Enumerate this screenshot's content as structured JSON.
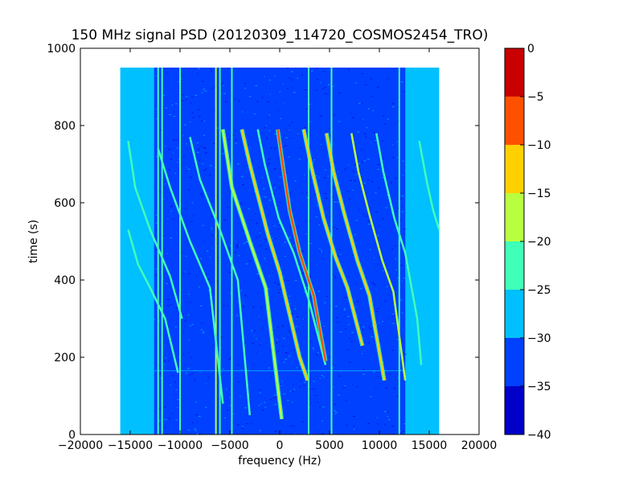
{
  "chart_data": {
    "type": "heatmap",
    "title": "150 MHz signal PSD (20120309_114720_COSMOS2454_TRO)",
    "xlabel": "frequency (Hz)",
    "ylabel": "time (s)",
    "xlim": [
      -20000,
      20000
    ],
    "ylim": [
      0,
      1000
    ],
    "xticks": [
      -20000,
      -15000,
      -10000,
      -5000,
      0,
      5000,
      10000,
      15000,
      20000
    ],
    "yticks": [
      0,
      200,
      400,
      600,
      800,
      1000
    ],
    "data_extent": {
      "x": [
        -16000,
        16000
      ],
      "y": [
        0,
        950
      ]
    },
    "colorbar": {
      "range": [
        -40,
        0
      ],
      "ticks": [
        0,
        -5,
        -10,
        -15,
        -20,
        -25,
        -30,
        -35,
        -40
      ],
      "levels": [
        {
          "min": -40,
          "max": -35,
          "color": "#0000c8"
        },
        {
          "min": -35,
          "max": -30,
          "color": "#0040ff"
        },
        {
          "min": -30,
          "max": -25,
          "color": "#00c0ff"
        },
        {
          "min": -25,
          "max": -20,
          "color": "#40ffb8"
        },
        {
          "min": -20,
          "max": -15,
          "color": "#b8ff40"
        },
        {
          "min": -15,
          "max": -10,
          "color": "#ffd000"
        },
        {
          "min": -10,
          "max": -5,
          "color": "#ff5000"
        },
        {
          "min": -5,
          "max": 0,
          "color": "#c80000"
        }
      ]
    },
    "colors": {
      "background": "#00c0ff",
      "noise_floor": "#0040ff",
      "deep_floor": "#0000c8"
    },
    "doppler_curves": [
      {
        "name": "c1",
        "points": [
          [
            -15200,
            760
          ],
          [
            -14500,
            640
          ],
          [
            -13000,
            530
          ],
          [
            -11000,
            410
          ],
          [
            -9800,
            300
          ]
        ],
        "level": -22
      },
      {
        "name": "c2",
        "points": [
          [
            -15200,
            530
          ],
          [
            -14200,
            440
          ],
          [
            -13000,
            380
          ],
          [
            -11500,
            300
          ],
          [
            -10200,
            160
          ]
        ],
        "level": -22
      },
      {
        "name": "c3",
        "points": [
          [
            -12200,
            740
          ],
          [
            -11000,
            640
          ],
          [
            -9000,
            500
          ],
          [
            -7000,
            380
          ],
          [
            -5700,
            80
          ]
        ],
        "level": -22
      },
      {
        "name": "c4",
        "points": [
          [
            -9000,
            770
          ],
          [
            -8000,
            660
          ],
          [
            -6000,
            530
          ],
          [
            -4200,
            400
          ],
          [
            -3000,
            50
          ]
        ],
        "level": -22
      },
      {
        "name": "c5",
        "points": [
          [
            -5700,
            790
          ],
          [
            -4800,
            640
          ],
          [
            -3000,
            500
          ],
          [
            -1400,
            380
          ],
          [
            200,
            40
          ]
        ],
        "level": -18
      },
      {
        "name": "c6",
        "points": [
          [
            -3800,
            790
          ],
          [
            -3000,
            700
          ],
          [
            -1200,
            520
          ],
          [
            0,
            420
          ],
          [
            2000,
            200
          ],
          [
            2800,
            140
          ]
        ],
        "level": -12
      },
      {
        "name": "c7",
        "points": [
          [
            -2200,
            790
          ],
          [
            -1500,
            700
          ],
          [
            -100,
            560
          ],
          [
            1400,
            470
          ],
          [
            2900,
            350
          ],
          [
            4600,
            180
          ]
        ],
        "level": -22
      },
      {
        "name": "c8",
        "points": [
          [
            -200,
            790
          ],
          [
            300,
            700
          ],
          [
            1000,
            580
          ],
          [
            2000,
            470
          ],
          [
            3400,
            360
          ],
          [
            4600,
            190
          ]
        ],
        "level": -7
      },
      {
        "name": "c9",
        "points": [
          [
            2400,
            790
          ],
          [
            3200,
            690
          ],
          [
            4400,
            560
          ],
          [
            5600,
            460
          ],
          [
            6800,
            380
          ],
          [
            8300,
            230
          ]
        ],
        "level": -12
      },
      {
        "name": "c10",
        "points": [
          [
            4700,
            780
          ],
          [
            5400,
            680
          ],
          [
            6500,
            570
          ],
          [
            7800,
            450
          ],
          [
            9000,
            360
          ],
          [
            10500,
            140
          ]
        ],
        "level": -14
      },
      {
        "name": "c11",
        "points": [
          [
            7200,
            780
          ],
          [
            7900,
            680
          ],
          [
            9000,
            570
          ],
          [
            10300,
            450
          ],
          [
            11400,
            370
          ],
          [
            12600,
            140
          ]
        ],
        "level": -20
      },
      {
        "name": "c12",
        "points": [
          [
            9700,
            780
          ],
          [
            10400,
            680
          ],
          [
            11500,
            560
          ],
          [
            12600,
            470
          ],
          [
            13800,
            300
          ],
          [
            14200,
            180
          ]
        ],
        "level": -22
      },
      {
        "name": "c13",
        "points": [
          [
            14000,
            760
          ],
          [
            14800,
            650
          ],
          [
            15400,
            580
          ],
          [
            16000,
            530
          ]
        ],
        "level": -22
      }
    ],
    "vertical_lines": [
      {
        "x": -12200,
        "level": -25
      },
      {
        "x": -11800,
        "level": -25
      },
      {
        "x": -10000,
        "level": -25
      },
      {
        "x": -6400,
        "level": -18
      },
      {
        "x": -6000,
        "level": -25
      },
      {
        "x": -4800,
        "level": -25
      },
      {
        "x": 2900,
        "level": -25
      },
      {
        "x": 5200,
        "level": -25
      },
      {
        "x": 12000,
        "level": -25
      }
    ]
  }
}
